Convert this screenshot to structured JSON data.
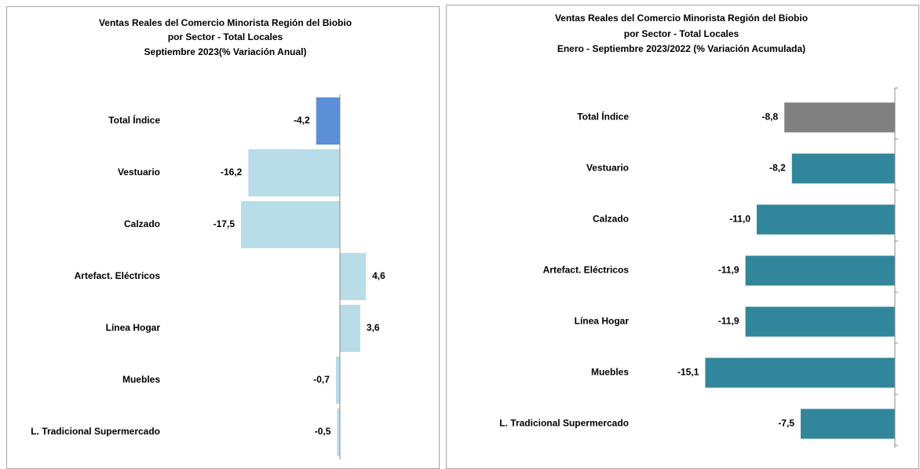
{
  "chart_data": [
    {
      "type": "barh",
      "title": [
        "Ventas Reales del Comercio Minorista  Región del Biobio",
        "por Sector - Total Locales",
        "Septiembre 2023(% Variación Anual)"
      ],
      "categories": [
        "Total Índice",
        "Vestuario",
        "Calzado",
        "Artefact. Eléctricos",
        "Línea Hogar",
        "Muebles",
        "L. Tradicional Supermercado"
      ],
      "values": [
        -4.2,
        -16.2,
        -17.5,
        4.6,
        3.6,
        -0.7,
        -0.5
      ],
      "value_labels": [
        "-4,2",
        "-16,2",
        "-17,5",
        "4,6",
        "3,6",
        "-0,7",
        "-0,5"
      ],
      "colors": [
        "#5b8fd6",
        "#b8dde9",
        "#b8dde9",
        "#b8dde9",
        "#b8dde9",
        "#b8dde9",
        "#b8dde9"
      ],
      "xlim": [
        -20,
        10
      ]
    },
    {
      "type": "barh",
      "title": [
        "Ventas Reales del Comercio Minorista Región del Biobio",
        "por Sector - Total Locales",
        "Enero - Septiembre 2023/2022  (% Variación Acumulada)"
      ],
      "categories": [
        "Total Índice",
        "Vestuario",
        "Calzado",
        "Artefact. Eléctricos",
        "Línea Hogar",
        "Muebles",
        "L. Tradicional Supermercado"
      ],
      "values": [
        -8.8,
        -8.2,
        -11.0,
        -11.9,
        -11.9,
        -15.1,
        -7.5
      ],
      "value_labels": [
        "-8,8",
        "-8,2",
        "-11,0",
        "-11,9",
        "-11,9",
        "-15,1",
        "-7,5"
      ],
      "colors": [
        "#808080",
        "#31869b",
        "#31869b",
        "#31869b",
        "#31869b",
        "#31869b",
        "#31869b"
      ],
      "xlim": [
        -20,
        0
      ]
    }
  ]
}
